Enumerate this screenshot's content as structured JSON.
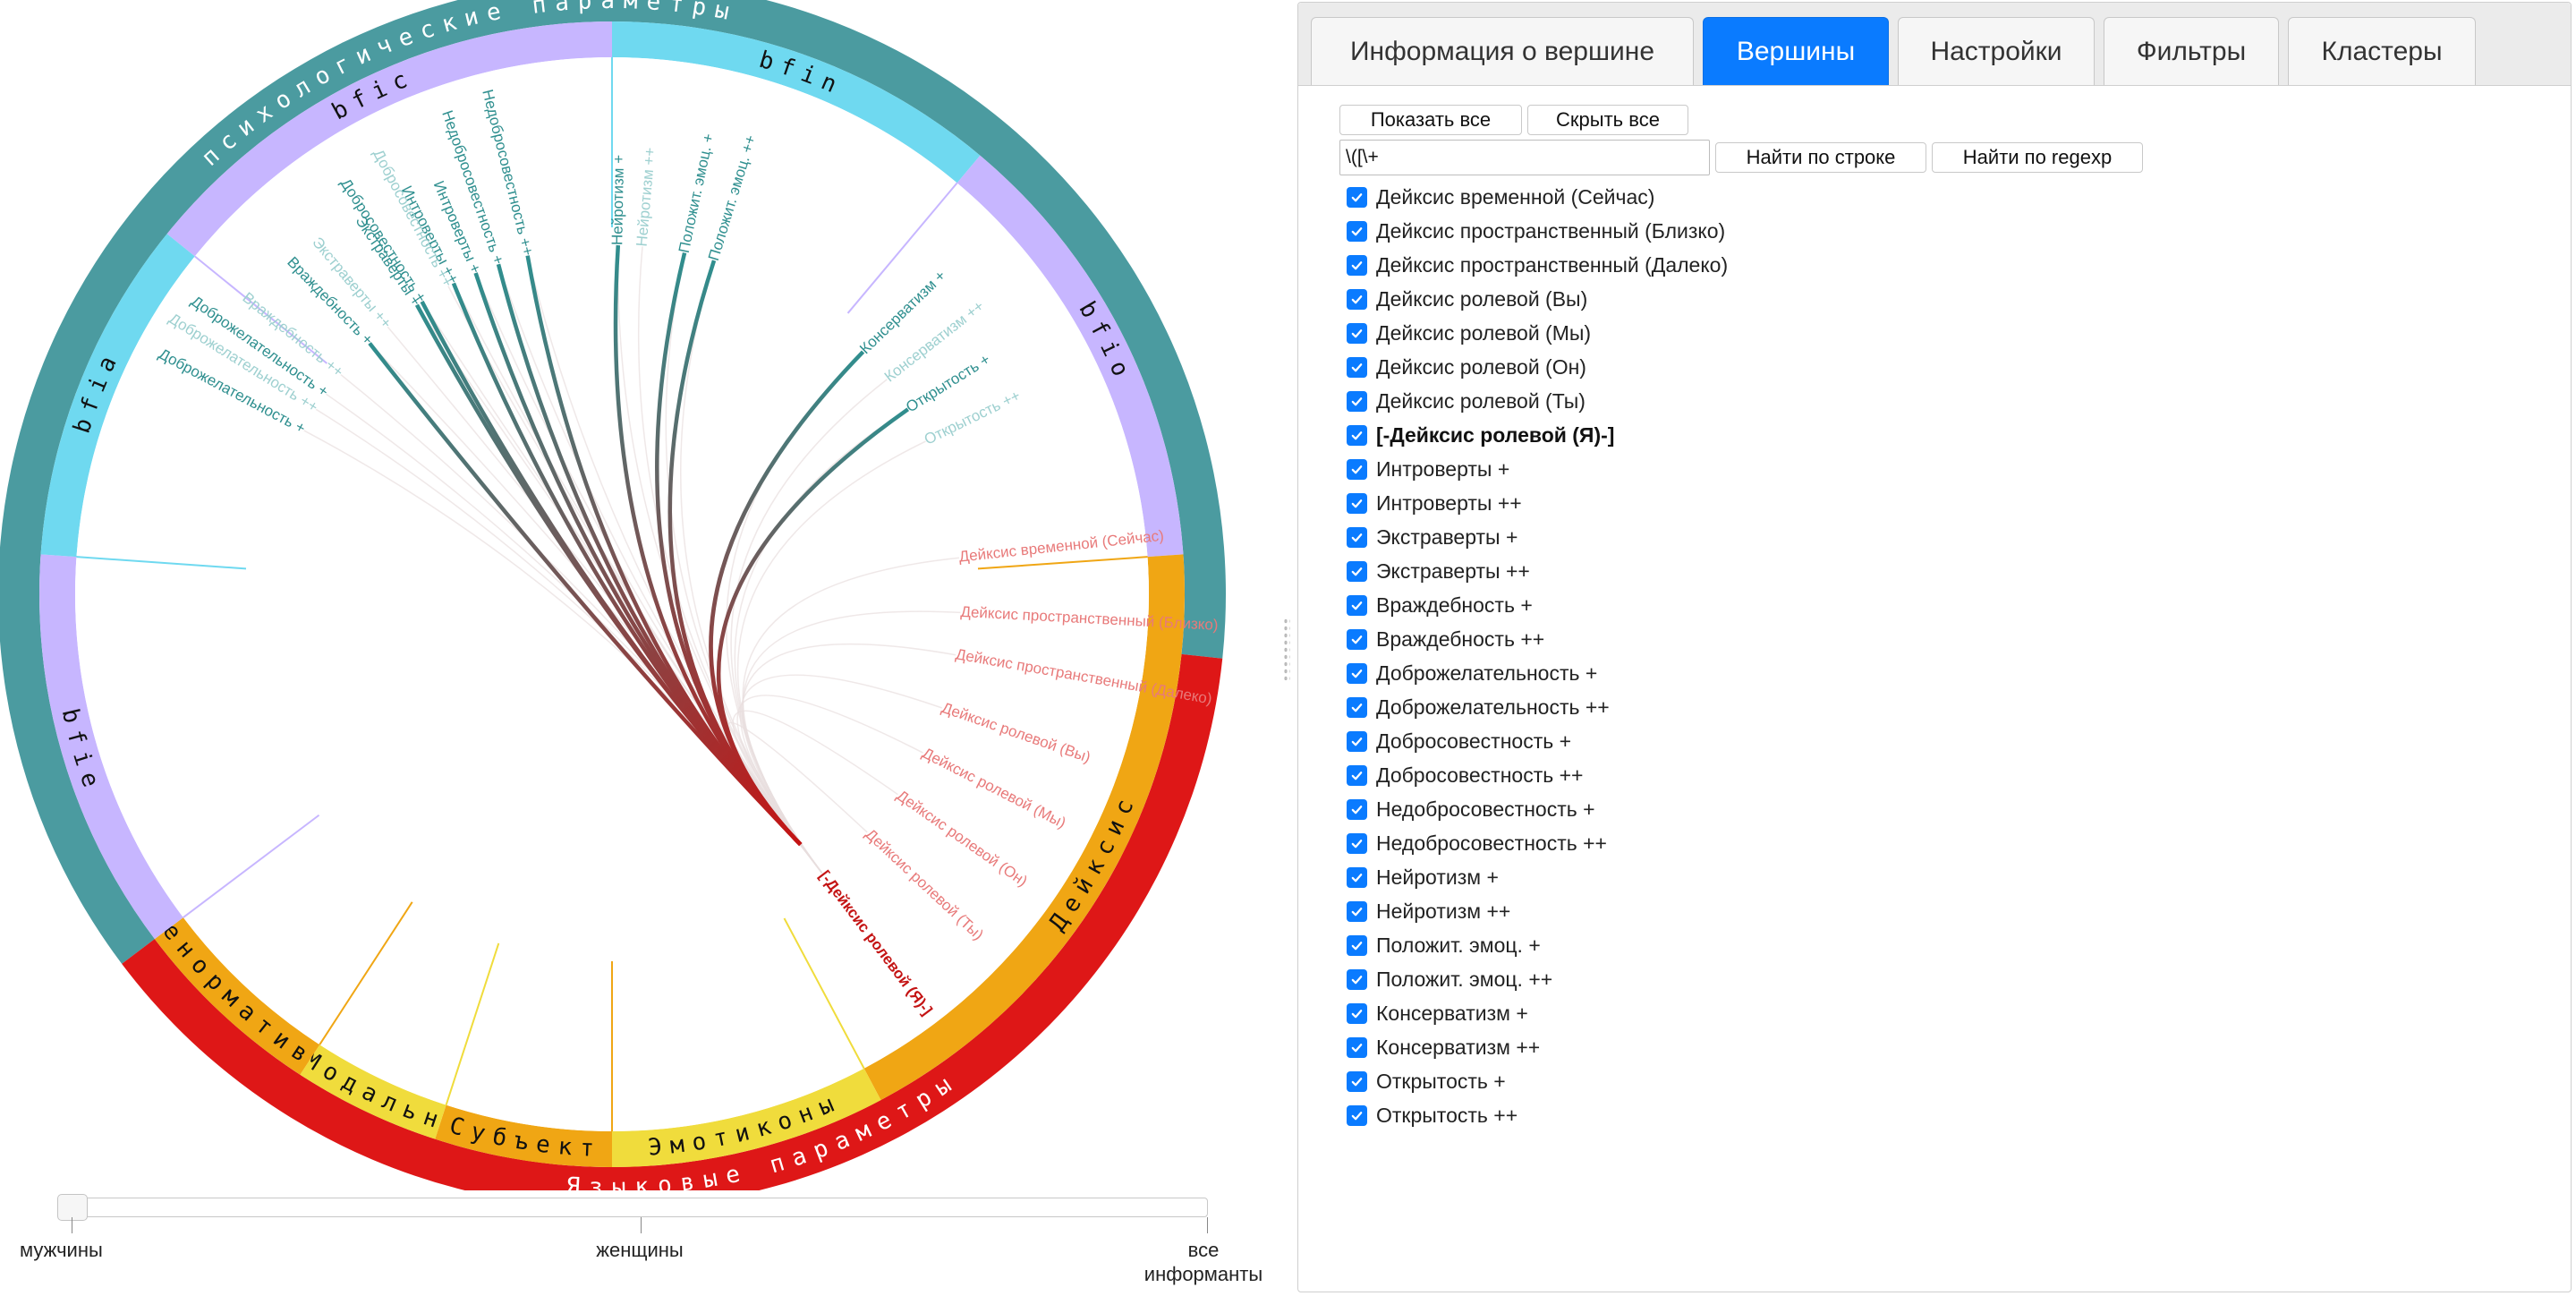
{
  "chart": {
    "outer_arcs": [
      {
        "label": "психологические параметры",
        "color": "#4b9ba0",
        "start": -127,
        "end": 96
      },
      {
        "label": "Языковые параметры",
        "color": "#de1717",
        "start": 96,
        "end": 233
      }
    ],
    "groups": [
      {
        "label": "bfic",
        "color": "#c7b6ff",
        "start": -51,
        "end": 0
      },
      {
        "label": "bfin",
        "color": "#6fd9f0",
        "start": 0,
        "end": 40
      },
      {
        "label": "bfio",
        "color": "#c7b6ff",
        "start": 40,
        "end": 86
      },
      {
        "label": "Дейксис",
        "color": "#f0a614",
        "start": 86,
        "end": 152
      },
      {
        "label": "Эмотиконы",
        "color": "#f0dc3c",
        "start": 152,
        "end": 180
      },
      {
        "label": "Субъект",
        "color": "#f0a614",
        "start": 180,
        "end": 198
      },
      {
        "label": "Модальн",
        "color": "#f0dc3c",
        "start": 198,
        "end": 213
      },
      {
        "label": "Ненормативн",
        "color": "#f0a614",
        "start": 213,
        "end": 233
      },
      {
        "label": "bfie",
        "color": "#c7b6ff",
        "start": 233,
        "end": 274
      },
      {
        "label": "bfia",
        "color": "#6fd9f0",
        "start": 274,
        "end": 309
      }
    ],
    "nodes": [
      {
        "label": "Доброжелательность ++",
        "angle": -58,
        "color": "#9ed0d0",
        "on": false
      },
      {
        "label": "Доброжелательность +",
        "angle": -55,
        "color": "#2f8f8f",
        "on": false
      },
      {
        "label": "Враждебность ++",
        "angle": -51,
        "color": "#9ed0d0",
        "on": false
      },
      {
        "label": "Враждебность +",
        "angle": -44,
        "color": "#2f8f8f",
        "on": true
      },
      {
        "label": "Экстраверты ++",
        "angle": -40,
        "color": "#9ed0d0",
        "on": false
      },
      {
        "label": "Экстраверты +",
        "angle": -34,
        "color": "#2f8f8f",
        "on": true
      },
      {
        "label": "Интроверты ++",
        "angle": -27,
        "color": "#2f8f8f",
        "on": true
      },
      {
        "label": "Интроверты +",
        "angle": -23,
        "color": "#2f8f8f",
        "on": true
      },
      {
        "label": "Доброжелательность +",
        "angle": -62,
        "color": "#2f8f8f",
        "on": false
      },
      {
        "label": "Добросовестность +",
        "angle": -33,
        "color": "#2f8f8f",
        "on": true
      },
      {
        "label": "Добросовестность ++",
        "angle": -28,
        "color": "#9ed0d0",
        "on": false
      },
      {
        "label": "Недобросовестность +",
        "angle": -19,
        "color": "#2f8f8f",
        "on": true
      },
      {
        "label": "Недобросовестность ++",
        "angle": -14,
        "color": "#2f8f8f",
        "on": true
      },
      {
        "label": "Нейротизм +",
        "angle": 1,
        "color": "#2f8f8f",
        "on": true
      },
      {
        "label": "Нейротизм ++",
        "angle": 5,
        "color": "#9ed0d0",
        "on": false
      },
      {
        "label": "Положит. эмоц. +",
        "angle": 12,
        "color": "#2f8f8f",
        "on": true
      },
      {
        "label": "Положит. эмоц. ++",
        "angle": 17,
        "color": "#2f8f8f",
        "on": true
      },
      {
        "label": "Консерватизм +",
        "angle": 46,
        "color": "#2f8f8f",
        "on": true
      },
      {
        "label": "Консерватизм ++",
        "angle": 52,
        "color": "#9ed0d0",
        "on": false
      },
      {
        "label": "Открытость +",
        "angle": 58,
        "color": "#2f8f8f",
        "on": true
      },
      {
        "label": "Открытость ++",
        "angle": 64,
        "color": "#9ed0d0",
        "on": false
      },
      {
        "label": "Дейксис временной (Сейчас)",
        "angle": 84,
        "color": "#e87a7a",
        "on": false
      },
      {
        "label": "Дейксис пространственный (Близко)",
        "angle": 93,
        "color": "#e87a7a",
        "on": false
      },
      {
        "label": "Дейксис пространственный (Далеко)",
        "angle": 100,
        "color": "#e87a7a",
        "on": false
      },
      {
        "label": "Дейксис ролевой (Вы)",
        "angle": 109,
        "color": "#e87a7a",
        "on": false
      },
      {
        "label": "Дейксис ролевой (Мы)",
        "angle": 117,
        "color": "#e87a7a",
        "on": false
      },
      {
        "label": "Дейксис ролевой (Он)",
        "angle": 125,
        "color": "#e87a7a",
        "on": false
      },
      {
        "label": "Дейксис ролевой (Ты)",
        "angle": 133,
        "color": "#e87a7a",
        "on": false
      },
      {
        "label": "[-Дейксис ролевой (Я)-]",
        "angle": 143,
        "color": "#c41414",
        "on": true
      }
    ],
    "focus_node": "[-Дейксис ролевой (Я)-]"
  },
  "slider": {
    "value": 0,
    "ticks": [
      "мужчины",
      "женщины",
      "все информанты"
    ]
  },
  "panel": {
    "tabs": [
      {
        "label": "Информация о вершине",
        "active": false
      },
      {
        "label": "Вершины",
        "active": true
      },
      {
        "label": "Настройки",
        "active": false
      },
      {
        "label": "Фильтры",
        "active": false
      },
      {
        "label": "Кластеры",
        "active": false
      }
    ],
    "show_all_label": "Показать все",
    "hide_all_label": "Скрыть все",
    "search_value": "\\([\\+",
    "find_string_label": "Найти по строке",
    "find_regexp_label": "Найти по regexp",
    "items": [
      {
        "label": "Дейксис временной (Сейчас)",
        "checked": true,
        "bold": false
      },
      {
        "label": "Дейксис пространственный (Близко)",
        "checked": true,
        "bold": false
      },
      {
        "label": "Дейксис пространственный (Далеко)",
        "checked": true,
        "bold": false
      },
      {
        "label": "Дейксис ролевой (Вы)",
        "checked": true,
        "bold": false
      },
      {
        "label": "Дейксис ролевой (Мы)",
        "checked": true,
        "bold": false
      },
      {
        "label": "Дейксис ролевой (Он)",
        "checked": true,
        "bold": false
      },
      {
        "label": "Дейксис ролевой (Ты)",
        "checked": true,
        "bold": false
      },
      {
        "label": "[-Дейксис ролевой (Я)-]",
        "checked": true,
        "bold": true
      },
      {
        "label": "Интроверты +",
        "checked": true,
        "bold": false
      },
      {
        "label": "Интроверты ++",
        "checked": true,
        "bold": false
      },
      {
        "label": "Экстраверты +",
        "checked": true,
        "bold": false
      },
      {
        "label": "Экстраверты ++",
        "checked": true,
        "bold": false
      },
      {
        "label": "Враждебность +",
        "checked": true,
        "bold": false
      },
      {
        "label": "Враждебность ++",
        "checked": true,
        "bold": false
      },
      {
        "label": "Доброжелательность +",
        "checked": true,
        "bold": false
      },
      {
        "label": "Доброжелательность ++",
        "checked": true,
        "bold": false
      },
      {
        "label": "Добросовестность +",
        "checked": true,
        "bold": false
      },
      {
        "label": "Добросовестность ++",
        "checked": true,
        "bold": false
      },
      {
        "label": "Недобросовестность +",
        "checked": true,
        "bold": false
      },
      {
        "label": "Недобросовестность ++",
        "checked": true,
        "bold": false
      },
      {
        "label": "Нейротизм +",
        "checked": true,
        "bold": false
      },
      {
        "label": "Нейротизм ++",
        "checked": true,
        "bold": false
      },
      {
        "label": "Положит. эмоц. +",
        "checked": true,
        "bold": false
      },
      {
        "label": "Положит. эмоц. ++",
        "checked": true,
        "bold": false
      },
      {
        "label": "Консерватизм +",
        "checked": true,
        "bold": false
      },
      {
        "label": "Консерватизм ++",
        "checked": true,
        "bold": false
      },
      {
        "label": "Открытость +",
        "checked": true,
        "bold": false
      },
      {
        "label": "Открытость ++",
        "checked": true,
        "bold": false
      }
    ]
  }
}
